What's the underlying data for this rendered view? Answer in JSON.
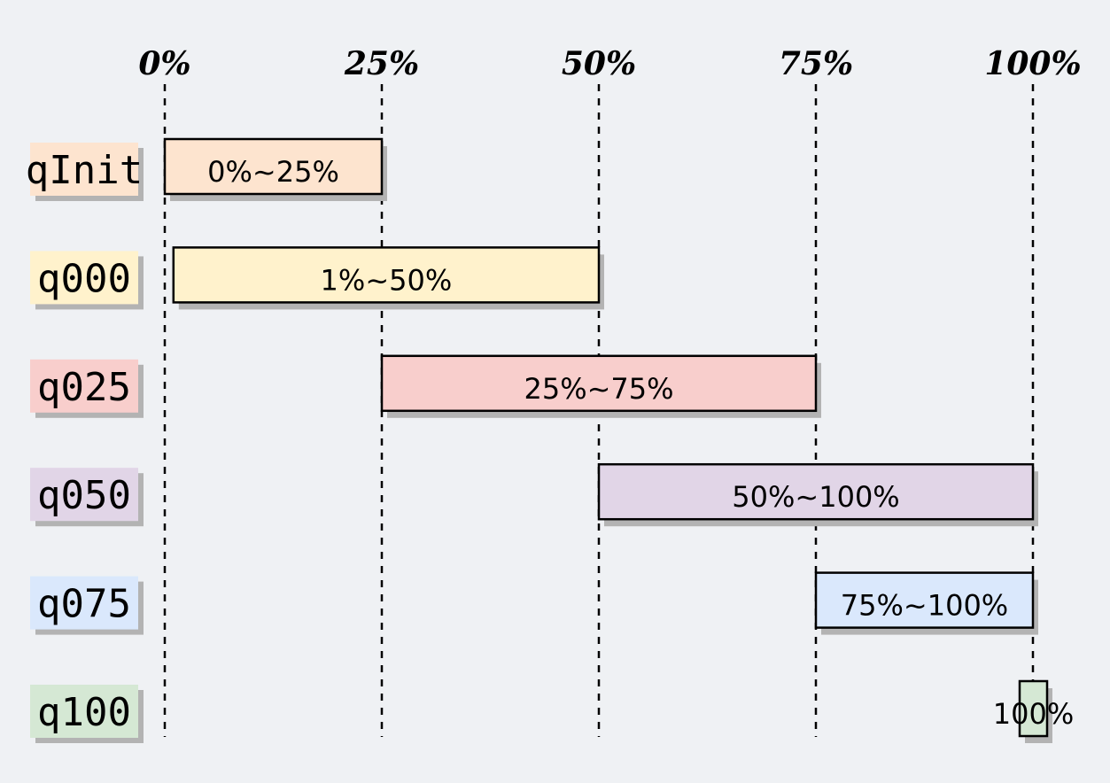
{
  "chart_data": {
    "type": "gantt-range",
    "axis": {
      "ticks": [
        "0%",
        "25%",
        "50%",
        "75%",
        "100%"
      ],
      "tick_values": [
        0,
        25,
        50,
        75,
        100
      ],
      "range": [
        0,
        100
      ],
      "grid": "dashed vertical"
    },
    "rows": [
      {
        "name": "qInit",
        "start": 0,
        "end": 25,
        "label": "0%~25%",
        "color": "#fde4cf"
      },
      {
        "name": "q000",
        "start": 1,
        "end": 50,
        "label": "1%~50%",
        "color": "#fff2cc"
      },
      {
        "name": "q025",
        "start": 25,
        "end": 75,
        "label": "25%~75%",
        "color": "#f8cecc"
      },
      {
        "name": "q050",
        "start": 50,
        "end": 100,
        "label": "50%~100%",
        "color": "#e1d5e7"
      },
      {
        "name": "q075",
        "start": 75,
        "end": 100,
        "label": "75%~100%",
        "color": "#dae8fc"
      },
      {
        "name": "q100",
        "start": 100,
        "end": 100,
        "label": "100%",
        "color": "#d5e8d4"
      }
    ]
  }
}
